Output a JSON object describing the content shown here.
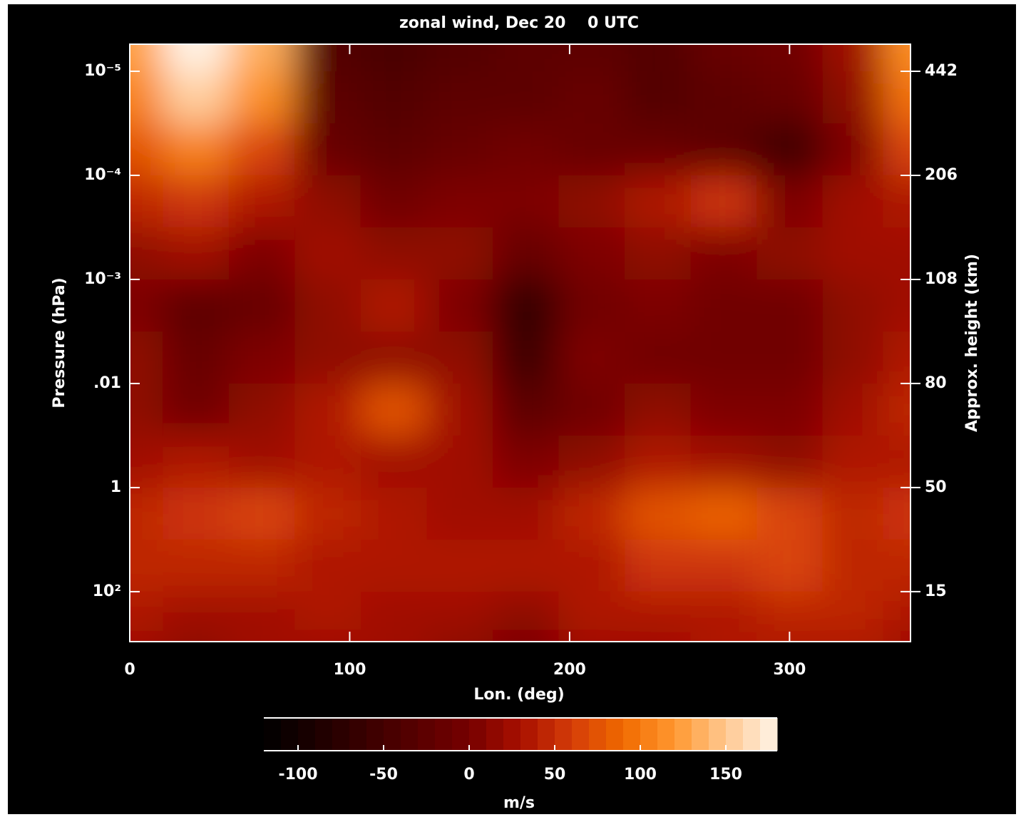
{
  "chart_data": {
    "type": "contour",
    "title": "zonal wind, Dec 20    0 UTC",
    "xlabel": "Lon. (deg)",
    "ylabel": "Pressure (hPa)",
    "y2label": "Approx. height (km)",
    "xlim": [
      0,
      355
    ],
    "xticks": [
      0,
      100,
      200,
      300
    ],
    "ylim": [
      5.48,
      -0.26
    ],
    "yticks": [
      {
        "value": 0,
        "label": "10⁻⁵"
      },
      {
        "value": 1,
        "label": "10⁻⁴"
      },
      {
        "value": 2,
        "label": "10⁻³"
      },
      {
        "value": 3,
        "label": ".01"
      },
      {
        "value": 4,
        "label": "1"
      },
      {
        "value": 5,
        "label": "10²"
      }
    ],
    "y2lim": [
      5.48,
      -0.26
    ],
    "y2ticks": [
      {
        "value": 0,
        "label": "442"
      },
      {
        "value": 1,
        "label": "206"
      },
      {
        "value": 2,
        "label": "108"
      },
      {
        "value": 3,
        "label": "80"
      },
      {
        "value": 4,
        "label": "50"
      },
      {
        "value": 5,
        "label": "15"
      }
    ],
    "x": [
      0,
      30,
      60,
      90,
      120,
      150,
      180,
      210,
      240,
      270,
      300,
      330,
      355
    ],
    "y": [
      -0.25,
      0.25,
      0.75,
      1.25,
      1.75,
      2.25,
      2.75,
      3.25,
      3.75,
      4.25,
      4.75,
      5.25,
      5.48
    ],
    "values": [
      [
        120,
        180,
        130,
        -40,
        -50,
        -40,
        -30,
        -30,
        -40,
        -20,
        -10,
        20,
        110
      ],
      [
        100,
        150,
        110,
        -30,
        -40,
        -30,
        -30,
        -20,
        -40,
        -30,
        -20,
        10,
        90
      ],
      [
        70,
        100,
        60,
        -20,
        -30,
        -20,
        -10,
        -20,
        -20,
        -30,
        -60,
        0,
        60
      ],
      [
        40,
        50,
        30,
        10,
        -10,
        0,
        0,
        10,
        30,
        50,
        0,
        20,
        30
      ],
      [
        10,
        20,
        0,
        20,
        10,
        10,
        -20,
        0,
        10,
        0,
        10,
        20,
        20
      ],
      [
        0,
        -30,
        -20,
        10,
        30,
        0,
        -70,
        -10,
        0,
        -10,
        -10,
        10,
        20
      ],
      [
        10,
        -20,
        0,
        10,
        10,
        10,
        -60,
        0,
        -10,
        -10,
        -10,
        10,
        30
      ],
      [
        10,
        -10,
        10,
        30,
        70,
        20,
        -30,
        -10,
        10,
        0,
        0,
        20,
        40
      ],
      [
        20,
        30,
        20,
        30,
        20,
        20,
        0,
        10,
        30,
        20,
        10,
        30,
        30
      ],
      [
        40,
        50,
        60,
        40,
        30,
        20,
        20,
        40,
        70,
        80,
        60,
        40,
        50
      ],
      [
        40,
        40,
        40,
        30,
        30,
        30,
        30,
        30,
        50,
        50,
        60,
        40,
        40
      ],
      [
        30,
        20,
        20,
        30,
        20,
        20,
        10,
        30,
        30,
        30,
        40,
        40,
        30
      ],
      [
        20,
        10,
        20,
        20,
        20,
        10,
        0,
        20,
        20,
        30,
        30,
        30,
        20
      ]
    ],
    "zlim": [
      -120,
      180
    ],
    "zstep": 10,
    "colormap": [
      "#000000",
      "#1c0000",
      "#3a0000",
      "#580000",
      "#760000",
      "#a81000",
      "#d43c08",
      "#f06a00",
      "#ff9830",
      "#ffc890",
      "#fff4e8"
    ],
    "colorbar_ticks": [
      -100,
      -50,
      0,
      50,
      100,
      150
    ],
    "colorbar_label": "m/s"
  }
}
